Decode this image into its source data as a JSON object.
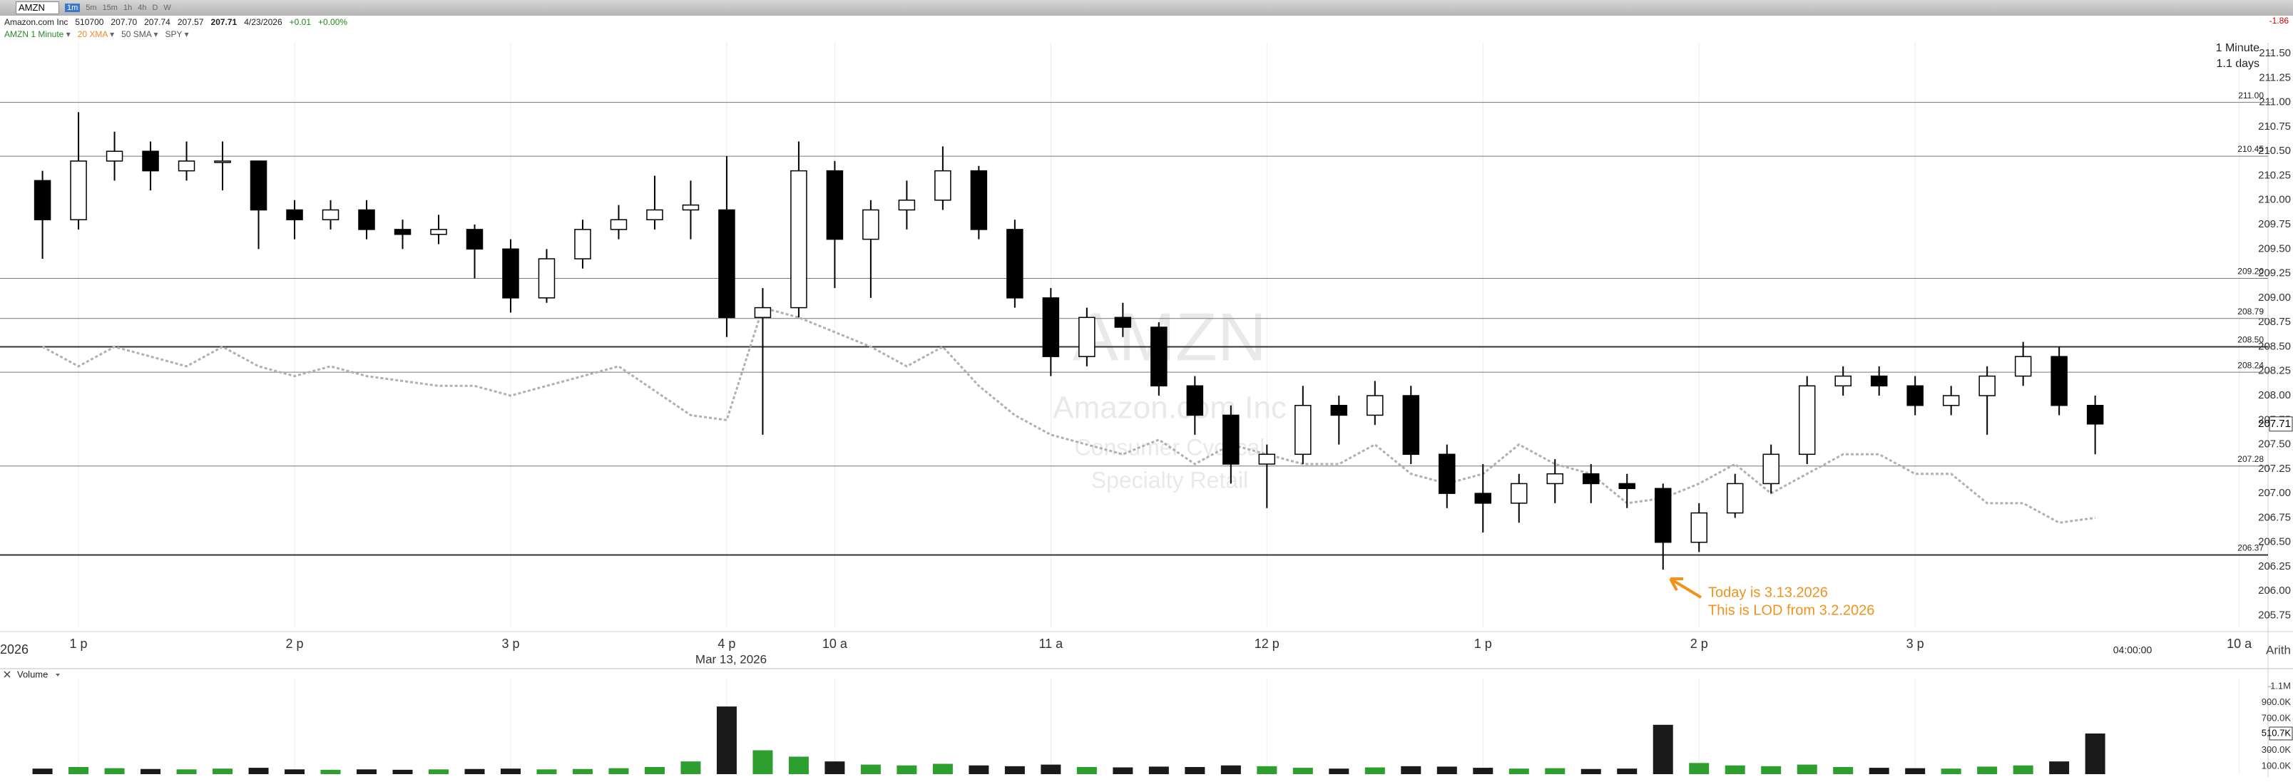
{
  "toolbar": {
    "symbol": "AMZN",
    "intervals": [
      "1m",
      "5m",
      "15m",
      "1h",
      "4h",
      "D",
      "W"
    ],
    "change": "-1.86"
  },
  "quote": {
    "name": "Amazon.com Inc",
    "open": "207.70",
    "high": "207.74",
    "low": "207.57",
    "last": "207.71",
    "date": "4/23/2026",
    "change": "+0.01",
    "change_pct": "+0.00%"
  },
  "indicators": [
    "20 XMA",
    "50 SMA"
  ],
  "chart_data": {
    "type": "candlestick",
    "interval_label": "1 Minute",
    "range_label": "1.1 days",
    "watermark": [
      "AMZN",
      "Amazon.com Inc",
      "Consumer Cyclical",
      "Specialty Retail"
    ],
    "date_label": "Mar 13, 2026",
    "year_label": "2026",
    "time_cursor_label": "04:00:00",
    "scale_mode": "Arith",
    "annotations": [
      "Today is 3.13.2026",
      "This is LOD from 3.2.2026"
    ],
    "xlim": [
      -1.18,
      61.8
    ],
    "xticks": [
      {
        "value": 1,
        "label": "1 p"
      },
      {
        "value": 7,
        "label": "2 p"
      },
      {
        "value": 13,
        "label": "3 p"
      },
      {
        "value": 19,
        "label": "4 p"
      },
      {
        "value": 22,
        "label": "10 a"
      },
      {
        "value": 28,
        "label": "11 a"
      },
      {
        "value": 34,
        "label": "12 p"
      },
      {
        "value": 40,
        "label": "1 p"
      },
      {
        "value": 46,
        "label": "2 p"
      },
      {
        "value": 52,
        "label": "3 p"
      },
      {
        "value": 61,
        "label": "10 a"
      }
    ],
    "ylim": [
      205.63,
      211.61
    ],
    "yticks": [
      205.75,
      {
        "value": 206,
        "label": "206.00"
      },
      206.25,
      {
        "value": 206.5,
        "label": "206.50"
      },
      206.75,
      {
        "value": 207,
        "label": "207.00"
      },
      207.25,
      {
        "value": 207.5,
        "label": "207.50"
      },
      207.75,
      {
        "value": 208,
        "label": "208.00"
      },
      208.25,
      {
        "value": 208.5,
        "label": "208.50"
      },
      208.75,
      {
        "value": 209,
        "label": "209.00"
      },
      209.25,
      {
        "value": 209.5,
        "label": "209.50"
      },
      209.75,
      {
        "value": 210,
        "label": "210.00"
      },
      210.25,
      {
        "value": 210.5,
        "label": "210.50"
      },
      210.75,
      {
        "value": 211,
        "label": "211.00"
      },
      211.25,
      {
        "value": 211.5,
        "label": "211.50"
      }
    ],
    "levels": [
      {
        "value": 211,
        "label": "211.00"
      },
      210.45,
      {
        "value": 209.2,
        "label": "209.20"
      },
      208.79,
      {
        "value": 208.5,
        "label": "208.50"
      },
      208.24,
      207.28,
      206.37
    ],
    "series": [
      {
        "name": "AMZN 1 Minute",
        "up_color": "#ffffff",
        "down_color": "#000000",
        "open": [
          210.2,
          209.8,
          210.4,
          210.5,
          210.3,
          210.4,
          210.4,
          209.9,
          209.8,
          209.9,
          209.7,
          209.65,
          209.7,
          209.5,
          209.0,
          209.4,
          209.7,
          209.8,
          209.9,
          209.9,
          208.8,
          208.9,
          210.3,
          209.6,
          209.9,
          210.0,
          210.3,
          209.7,
          209.0,
          208.4,
          208.8,
          208.7,
          208.1,
          207.8,
          207.3,
          207.4,
          207.9,
          207.8,
          208.0,
          207.4,
          207.0,
          206.9,
          207.1,
          207.2,
          207.1,
          207.05,
          206.5,
          206.8,
          207.1,
          207.4,
          208.1,
          208.2,
          208.1,
          207.9,
          208.0,
          208.2,
          208.4,
          207.9
        ],
        "high": [
          210.3,
          210.9,
          210.7,
          210.6,
          210.6,
          210.6,
          210.4,
          210.0,
          210.0,
          210.0,
          209.8,
          209.85,
          209.75,
          209.6,
          209.5,
          209.8,
          209.95,
          210.25,
          210.2,
          210.45,
          209.1,
          210.6,
          210.4,
          210.0,
          210.2,
          210.55,
          210.35,
          209.8,
          209.1,
          208.9,
          208.95,
          208.75,
          208.2,
          207.9,
          207.5,
          208.1,
          208.0,
          208.15,
          208.1,
          207.5,
          207.3,
          207.2,
          207.35,
          207.3,
          207.2,
          207.1,
          206.9,
          207.2,
          207.5,
          208.2,
          208.3,
          208.3,
          208.2,
          208.1,
          208.3,
          208.55,
          208.5,
          208.0
        ],
        "low": [
          209.4,
          209.7,
          210.2,
          210.1,
          210.2,
          210.1,
          209.5,
          209.6,
          209.7,
          209.6,
          209.5,
          209.55,
          209.2,
          208.85,
          208.95,
          209.3,
          209.6,
          209.7,
          209.6,
          208.6,
          207.6,
          208.8,
          209.1,
          209.0,
          209.7,
          209.9,
          209.6,
          208.9,
          208.2,
          208.3,
          208.6,
          208.0,
          207.6,
          207.1,
          206.85,
          207.3,
          207.5,
          207.7,
          207.3,
          206.85,
          206.6,
          206.7,
          206.9,
          206.9,
          206.85,
          206.22,
          206.4,
          206.75,
          207.0,
          207.3,
          208.0,
          208.0,
          207.8,
          207.8,
          207.6,
          208.1,
          207.8,
          207.4
        ],
        "close": [
          209.8,
          210.4,
          210.5,
          210.3,
          210.4,
          210.4,
          209.9,
          209.8,
          209.9,
          209.7,
          209.65,
          209.7,
          209.5,
          209.0,
          209.4,
          209.7,
          209.8,
          209.9,
          209.95,
          208.8,
          208.9,
          210.3,
          209.6,
          209.9,
          210.0,
          210.3,
          209.7,
          209.0,
          208.4,
          208.8,
          208.7,
          208.1,
          207.8,
          207.3,
          207.4,
          207.9,
          207.8,
          208.0,
          207.4,
          207.0,
          206.9,
          207.1,
          207.2,
          207.1,
          207.05,
          206.5,
          206.8,
          207.1,
          207.4,
          208.1,
          208.2,
          208.1,
          207.9,
          208.0,
          208.2,
          208.4,
          207.9,
          207.71
        ]
      }
    ],
    "overlay": {
      "name": "SPY",
      "color": "#b0b0b0",
      "values": [
        208.5,
        208.3,
        208.5,
        208.4,
        208.3,
        208.5,
        208.3,
        208.2,
        208.3,
        208.2,
        208.15,
        208.1,
        208.1,
        208.0,
        208.1,
        208.2,
        208.3,
        208.05,
        207.8,
        207.75,
        208.9,
        208.8,
        208.65,
        208.5,
        208.3,
        208.5,
        208.1,
        207.8,
        207.6,
        207.5,
        207.4,
        207.55,
        207.3,
        207.5,
        207.4,
        207.3,
        207.3,
        207.5,
        207.2,
        207.1,
        207.2,
        207.5,
        207.3,
        207.2,
        206.9,
        206.95,
        207.1,
        207.3,
        207.0,
        207.2,
        207.4,
        207.4,
        207.2,
        207.2,
        206.9,
        206.9,
        206.7,
        206.75
      ]
    },
    "volume": {
      "name": "Volume",
      "up_color": "#2e9e2e",
      "down_color": "#1a1a1a",
      "values": [
        70000,
        90000,
        75000,
        65000,
        60000,
        70000,
        80000,
        60000,
        55000,
        60000,
        55000,
        60000,
        65000,
        70000,
        60000,
        65000,
        75000,
        90000,
        160000,
        850000,
        300000,
        220000,
        160000,
        120000,
        110000,
        130000,
        110000,
        100000,
        120000,
        90000,
        85000,
        95000,
        90000,
        110000,
        100000,
        80000,
        70000,
        85000,
        100000,
        95000,
        80000,
        70000,
        75000,
        65000,
        70000,
        620000,
        140000,
        110000,
        100000,
        120000,
        90000,
        80000,
        75000,
        70000,
        95000,
        110000,
        160000,
        510700
      ],
      "last_label": "510.7K",
      "ylim": [
        0,
        1200000
      ],
      "yticks": [
        {
          "value": 1100000,
          "label": "1.1M"
        },
        {
          "value": 900000,
          "label": "900.0K"
        },
        {
          "value": 700000,
          "label": "700.0K"
        },
        {
          "value": 300000,
          "label": "300.0K"
        },
        {
          "value": 100000,
          "label": "100.0K"
        }
      ]
    }
  }
}
